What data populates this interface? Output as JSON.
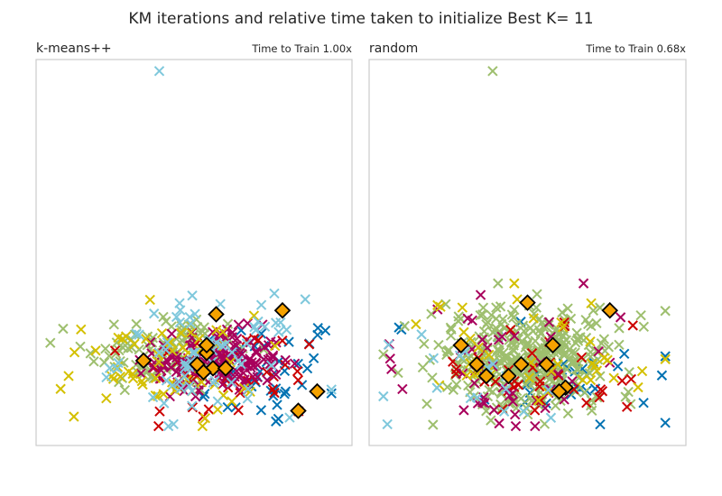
{
  "chart_data": {
    "type": "scatter",
    "title": "KM iterations and relative time taken to initialize Best K= 11",
    "colors": {
      "palette": [
        "#0072b2",
        "#009e73",
        "#d55e00",
        "#cc79a7",
        "#f0e442",
        "#56b4e9"
      ],
      "cluster_palette": [
        "#0072b2",
        "#9ebf6e",
        "#cc0000",
        "#a8005c",
        "#d4c000",
        "#7fc8dc"
      ],
      "center_fill": "#f5a200",
      "center_edge": "#000000",
      "frame": "#cccccc"
    },
    "xlim": [
      0,
      10
    ],
    "ylim": [
      0,
      10
    ],
    "panels": [
      {
        "name": "k-means++",
        "time_label": "Time to Train 1.00x",
        "outlier": {
          "x": 3.9,
          "y": 9.7,
          "cluster": 5
        },
        "centers": [
          {
            "x": 5.7,
            "y": 3.4
          },
          {
            "x": 7.8,
            "y": 3.5
          },
          {
            "x": 5.4,
            "y": 2.4
          },
          {
            "x": 3.4,
            "y": 2.2
          },
          {
            "x": 5.1,
            "y": 2.1
          },
          {
            "x": 5.6,
            "y": 2.0
          },
          {
            "x": 6.0,
            "y": 2.0
          },
          {
            "x": 5.3,
            "y": 1.9
          },
          {
            "x": 8.9,
            "y": 1.4
          },
          {
            "x": 8.3,
            "y": 0.9
          },
          {
            "x": 5.4,
            "y": 2.6
          }
        ],
        "clusters": [
          {
            "color_index": 0,
            "cx": 7.2,
            "cy": 1.9,
            "sx": 1.3,
            "sy": 0.75,
            "n": 45
          },
          {
            "color_index": 1,
            "cx": 4.2,
            "cy": 2.4,
            "sx": 1.3,
            "sy": 0.55,
            "n": 110
          },
          {
            "color_index": 2,
            "cx": 6.2,
            "cy": 1.8,
            "sx": 1.5,
            "sy": 0.65,
            "n": 40
          },
          {
            "color_index": 3,
            "cx": 5.8,
            "cy": 2.2,
            "sx": 1.0,
            "sy": 0.4,
            "n": 150
          },
          {
            "color_index": 4,
            "cx": 3.8,
            "cy": 2.0,
            "sx": 1.6,
            "sy": 0.7,
            "n": 60
          },
          {
            "color_index": 5,
            "cx": 5.5,
            "cy": 2.3,
            "sx": 1.4,
            "sy": 0.75,
            "n": 70
          }
        ]
      },
      {
        "name": "random",
        "time_label": "Time to Train 0.68x",
        "outlier": {
          "x": 3.9,
          "y": 9.7,
          "cluster": 1
        },
        "centers": [
          {
            "x": 5.0,
            "y": 3.7
          },
          {
            "x": 7.6,
            "y": 3.5
          },
          {
            "x": 2.9,
            "y": 2.6
          },
          {
            "x": 5.8,
            "y": 2.6
          },
          {
            "x": 3.4,
            "y": 2.1
          },
          {
            "x": 4.8,
            "y": 2.1
          },
          {
            "x": 5.6,
            "y": 2.1
          },
          {
            "x": 3.7,
            "y": 1.8
          },
          {
            "x": 4.4,
            "y": 1.8
          },
          {
            "x": 6.2,
            "y": 1.5
          },
          {
            "x": 6.0,
            "y": 1.4
          }
        ],
        "clusters": [
          {
            "color_index": 0,
            "cx": 6.5,
            "cy": 1.8,
            "sx": 1.8,
            "sy": 0.7,
            "n": 30
          },
          {
            "color_index": 1,
            "cx": 5.0,
            "cy": 2.3,
            "sx": 1.4,
            "sy": 0.7,
            "n": 360
          },
          {
            "color_index": 2,
            "cx": 5.7,
            "cy": 1.8,
            "sx": 1.5,
            "sy": 0.6,
            "n": 35
          },
          {
            "color_index": 3,
            "cx": 4.8,
            "cy": 1.9,
            "sx": 1.8,
            "sy": 0.8,
            "n": 50
          },
          {
            "color_index": 4,
            "cx": 5.0,
            "cy": 2.2,
            "sx": 2.0,
            "sy": 0.8,
            "n": 40
          },
          {
            "color_index": 5,
            "cx": 4.0,
            "cy": 2.0,
            "sx": 1.6,
            "sy": 0.7,
            "n": 18
          }
        ]
      }
    ]
  }
}
